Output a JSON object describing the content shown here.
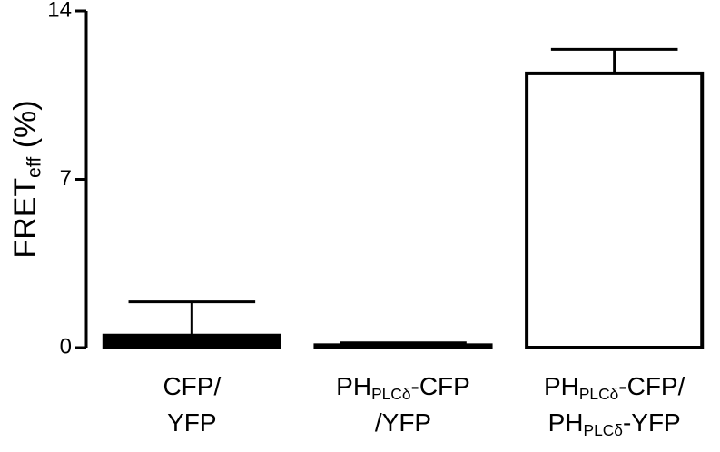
{
  "chart_data": {
    "type": "bar",
    "y_label": [
      "FRET",
      {
        "sub": "eff"
      },
      " (%)"
    ],
    "categories": [
      [
        [
          "CFP/"
        ],
        [
          "YFP"
        ]
      ],
      [
        [
          "PH",
          {
            "sub": "PLCδ"
          },
          "-CFP"
        ],
        [
          "/YFP"
        ]
      ],
      [
        [
          "PH",
          {
            "sub": "PLCδ"
          },
          "-CFP/"
        ],
        [
          "PH",
          {
            "sub": "PLCδ"
          },
          "-YFP"
        ]
      ]
    ],
    "values": [
      0.5,
      0.1,
      11.4
    ],
    "errors": [
      1.4,
      0.1,
      1.0
    ],
    "colors": [
      "#000000",
      "#000000",
      "#ffffff"
    ],
    "edge_color": "#000000",
    "ylim": [
      0,
      14
    ],
    "yticks": [
      0,
      7,
      14
    ]
  }
}
